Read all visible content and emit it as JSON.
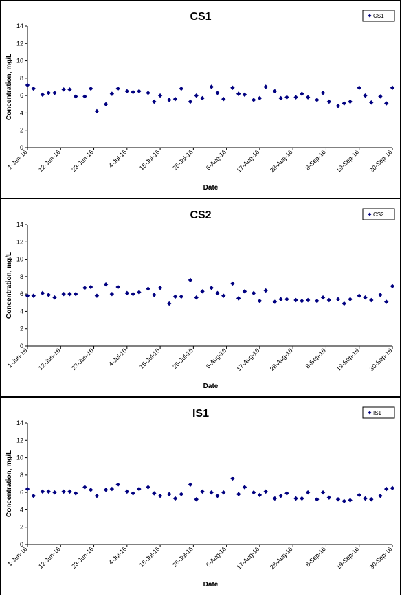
{
  "chart_data": [
    {
      "type": "scatter",
      "title": "CS1",
      "xlabel": "Date",
      "ylabel": "Concentration, mg/L",
      "ylim": [
        0,
        14
      ],
      "yticks": [
        "0",
        "2",
        "4",
        "6",
        "8",
        "10",
        "12",
        "14"
      ],
      "xlim": [
        "2016-06-01",
        "2016-09-30"
      ],
      "xticks": [
        "1-Jun-16",
        "12-Jun-16",
        "23-Jun-16",
        "4-Jul-16",
        "15-Jul-16",
        "26-Jul-16",
        "6-Aug-16",
        "17-Aug-16",
        "28-Aug-16",
        "8-Sep-16",
        "19-Sep-16",
        "30-Sep-16"
      ],
      "legend": "top-right",
      "grid": false,
      "marker_color": "#000080",
      "series": [
        {
          "name": "CS1",
          "x": [
            "2016-06-01",
            "2016-06-03",
            "2016-06-06",
            "2016-06-08",
            "2016-06-10",
            "2016-06-13",
            "2016-06-15",
            "2016-06-17",
            "2016-06-20",
            "2016-06-22",
            "2016-06-24",
            "2016-06-27",
            "2016-06-29",
            "2016-07-01",
            "2016-07-04",
            "2016-07-06",
            "2016-07-08",
            "2016-07-11",
            "2016-07-13",
            "2016-07-15",
            "2016-07-18",
            "2016-07-20",
            "2016-07-22",
            "2016-07-25",
            "2016-07-27",
            "2016-07-29",
            "2016-08-01",
            "2016-08-03",
            "2016-08-05",
            "2016-08-08",
            "2016-08-10",
            "2016-08-12",
            "2016-08-15",
            "2016-08-17",
            "2016-08-19",
            "2016-08-22",
            "2016-08-24",
            "2016-08-26",
            "2016-08-29",
            "2016-08-31",
            "2016-09-02",
            "2016-09-05",
            "2016-09-07",
            "2016-09-09",
            "2016-09-12",
            "2016-09-14",
            "2016-09-16",
            "2016-09-19",
            "2016-09-21",
            "2016-09-23",
            "2016-09-26",
            "2016-09-28",
            "2016-09-30"
          ],
          "y": [
            7.2,
            6.8,
            6.1,
            6.3,
            6.3,
            6.7,
            6.7,
            5.9,
            5.9,
            6.8,
            4.2,
            5.0,
            6.2,
            6.8,
            6.5,
            6.4,
            6.5,
            6.3,
            5.3,
            6.0,
            5.5,
            5.6,
            6.8,
            5.3,
            6.0,
            5.7,
            7.0,
            6.3,
            5.6,
            6.9,
            6.2,
            6.1,
            5.5,
            5.7,
            7.0,
            6.5,
            5.7,
            5.8,
            5.8,
            6.2,
            5.8,
            5.5,
            6.3,
            5.3,
            4.8,
            5.1,
            5.3,
            6.9,
            6.0,
            5.2,
            5.9,
            5.1,
            6.9
          ]
        }
      ]
    },
    {
      "type": "scatter",
      "title": "CS2",
      "xlabel": "Date",
      "ylabel": "Concentration, mg/L",
      "ylim": [
        0,
        14
      ],
      "yticks": [
        "0",
        "2",
        "4",
        "6",
        "8",
        "10",
        "12",
        "14"
      ],
      "xlim": [
        "2016-06-01",
        "2016-09-30"
      ],
      "xticks": [
        "1-Jun-16",
        "12-Jun-16",
        "23-Jun-16",
        "4-Jul-16",
        "15-Jul-16",
        "26-Jul-16",
        "6-Aug-16",
        "17-Aug-16",
        "28-Aug-16",
        "8-Sep-16",
        "19-Sep-16",
        "30-Sep-16"
      ],
      "legend": "top-right",
      "grid": false,
      "marker_color": "#000080",
      "series": [
        {
          "name": "CS2",
          "x": [
            "2016-06-01",
            "2016-06-03",
            "2016-06-06",
            "2016-06-08",
            "2016-06-10",
            "2016-06-13",
            "2016-06-15",
            "2016-06-17",
            "2016-06-20",
            "2016-06-22",
            "2016-06-24",
            "2016-06-27",
            "2016-06-29",
            "2016-07-01",
            "2016-07-04",
            "2016-07-06",
            "2016-07-08",
            "2016-07-11",
            "2016-07-13",
            "2016-07-15",
            "2016-07-18",
            "2016-07-20",
            "2016-07-22",
            "2016-07-25",
            "2016-07-27",
            "2016-07-29",
            "2016-08-01",
            "2016-08-03",
            "2016-08-05",
            "2016-08-08",
            "2016-08-10",
            "2016-08-12",
            "2016-08-15",
            "2016-08-17",
            "2016-08-19",
            "2016-08-22",
            "2016-08-24",
            "2016-08-26",
            "2016-08-29",
            "2016-08-31",
            "2016-09-02",
            "2016-09-05",
            "2016-09-07",
            "2016-09-09",
            "2016-09-12",
            "2016-09-14",
            "2016-09-16",
            "2016-09-19",
            "2016-09-21",
            "2016-09-23",
            "2016-09-26",
            "2016-09-28",
            "2016-09-30"
          ],
          "y": [
            5.8,
            5.8,
            6.1,
            5.9,
            5.6,
            6.0,
            6.0,
            6.0,
            6.7,
            6.8,
            5.8,
            7.1,
            6.0,
            6.8,
            6.1,
            6.0,
            6.2,
            6.6,
            5.9,
            6.7,
            4.9,
            5.7,
            5.7,
            7.6,
            5.6,
            6.3,
            6.7,
            6.1,
            5.8,
            7.2,
            5.5,
            6.3,
            6.1,
            5.2,
            6.4,
            5.1,
            5.4,
            5.4,
            5.3,
            5.2,
            5.3,
            5.2,
            5.6,
            5.3,
            5.4,
            4.9,
            5.4,
            5.8,
            5.6,
            5.3,
            5.9,
            5.1,
            6.9
          ]
        }
      ]
    },
    {
      "type": "scatter",
      "title": "IS1",
      "xlabel": "Date",
      "ylabel": "Concentration, mg/L",
      "ylim": [
        0,
        14
      ],
      "yticks": [
        "0",
        "2",
        "4",
        "6",
        "8",
        "10",
        "12",
        "14"
      ],
      "xlim": [
        "2016-06-01",
        "2016-09-30"
      ],
      "xticks": [
        "1-Jun-16",
        "12-Jun-16",
        "23-Jun-16",
        "4-Jul-16",
        "15-Jul-16",
        "26-Jul-16",
        "6-Aug-16",
        "17-Aug-16",
        "28-Aug-16",
        "8-Sep-16",
        "19-Sep-16",
        "30-Sep-16"
      ],
      "legend": "top-right",
      "grid": false,
      "marker_color": "#000080",
      "series": [
        {
          "name": "IS1",
          "x": [
            "2016-06-01",
            "2016-06-03",
            "2016-06-06",
            "2016-06-08",
            "2016-06-10",
            "2016-06-13",
            "2016-06-15",
            "2016-06-17",
            "2016-06-20",
            "2016-06-22",
            "2016-06-24",
            "2016-06-27",
            "2016-06-29",
            "2016-07-01",
            "2016-07-04",
            "2016-07-06",
            "2016-07-08",
            "2016-07-11",
            "2016-07-13",
            "2016-07-15",
            "2016-07-18",
            "2016-07-20",
            "2016-07-22",
            "2016-07-25",
            "2016-07-27",
            "2016-07-29",
            "2016-08-01",
            "2016-08-03",
            "2016-08-05",
            "2016-08-08",
            "2016-08-10",
            "2016-08-12",
            "2016-08-15",
            "2016-08-17",
            "2016-08-19",
            "2016-08-22",
            "2016-08-24",
            "2016-08-26",
            "2016-08-29",
            "2016-08-31",
            "2016-09-02",
            "2016-09-05",
            "2016-09-07",
            "2016-09-09",
            "2016-09-12",
            "2016-09-14",
            "2016-09-16",
            "2016-09-19",
            "2016-09-21",
            "2016-09-23",
            "2016-09-26",
            "2016-09-28",
            "2016-09-30"
          ],
          "y": [
            6.4,
            5.6,
            6.1,
            6.1,
            6.0,
            6.1,
            6.1,
            5.9,
            6.6,
            6.3,
            5.6,
            6.3,
            6.4,
            6.9,
            6.1,
            5.9,
            6.4,
            6.6,
            5.9,
            5.6,
            5.8,
            5.3,
            5.8,
            6.9,
            5.2,
            6.1,
            6.0,
            5.6,
            6.0,
            7.6,
            5.8,
            6.6,
            6.0,
            5.7,
            6.1,
            5.3,
            5.6,
            5.9,
            5.3,
            5.3,
            6.0,
            5.2,
            6.0,
            5.4,
            5.2,
            5.0,
            5.1,
            5.7,
            5.3,
            5.2,
            5.6,
            6.4,
            6.5
          ]
        }
      ]
    }
  ]
}
